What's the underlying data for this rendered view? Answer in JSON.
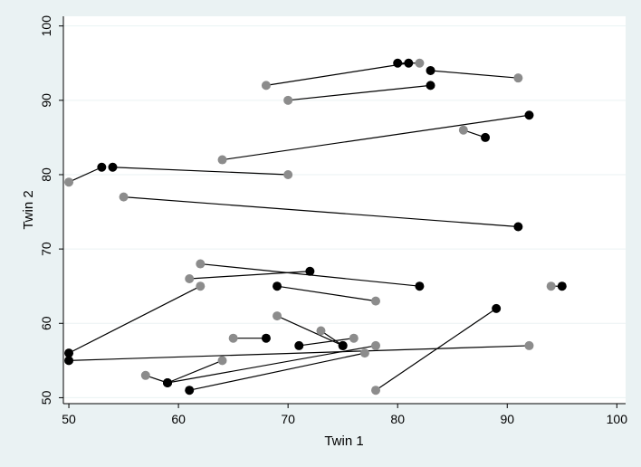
{
  "chart_data": {
    "type": "scatter",
    "title": "",
    "xlabel": "Twin 1",
    "ylabel": "Twin 2",
    "xlim": [
      49.5,
      100.8
    ],
    "ylim": [
      49.2,
      101.3
    ],
    "x_ticks": [
      50,
      60,
      70,
      80,
      90,
      100
    ],
    "y_ticks": [
      50,
      60,
      70,
      80,
      90,
      100
    ],
    "x_tick_labels": [
      "50",
      "60",
      "70",
      "80",
      "90",
      "100"
    ],
    "y_tick_labels": [
      "50",
      "60",
      "70",
      "80",
      "90",
      "100"
    ],
    "grid": "horizontal",
    "colors": {
      "black_points": "#000000",
      "gray_points": "#8c8c8c",
      "lines": "#000000",
      "plot_bg": "#ffffff",
      "outer_bg": "#eaf2f3",
      "grid": "#eaf2f3"
    },
    "pairs": [
      {
        "black": [
          80,
          95
        ],
        "gray": [
          82,
          95
        ]
      },
      {
        "black": [
          81,
          95
        ],
        "gray": [
          68,
          92
        ]
      },
      {
        "black": [
          83,
          94
        ],
        "gray": [
          91,
          93
        ]
      },
      {
        "black": [
          83,
          92
        ],
        "gray": [
          70,
          90
        ]
      },
      {
        "black": [
          92,
          88
        ],
        "gray": [
          64,
          82
        ]
      },
      {
        "black": [
          88,
          85
        ],
        "gray": [
          86,
          86
        ]
      },
      {
        "black": [
          53,
          81
        ],
        "gray": [
          50,
          79
        ]
      },
      {
        "black": [
          54,
          81
        ],
        "gray": [
          70,
          80
        ]
      },
      {
        "black": [
          91,
          73
        ],
        "gray": [
          55,
          77
        ]
      },
      {
        "black": [
          72,
          67
        ],
        "gray": [
          61,
          66
        ]
      },
      {
        "black": [
          82,
          65
        ],
        "gray": [
          62,
          68
        ]
      },
      {
        "black": [
          95,
          65
        ],
        "gray": [
          94,
          65
        ]
      },
      {
        "black": [
          50,
          56
        ],
        "gray": [
          62,
          65
        ]
      },
      {
        "black": [
          69,
          65
        ],
        "gray": [
          78,
          63
        ]
      },
      {
        "black": [
          89,
          62
        ],
        "gray": [
          78,
          51
        ]
      },
      {
        "black": [
          68,
          58
        ],
        "gray": [
          65,
          58
        ]
      },
      {
        "black": [
          71,
          57
        ],
        "gray": [
          76,
          58
        ]
      },
      {
        "black": [
          75,
          57
        ],
        "gray": [
          69,
          61
        ]
      },
      {
        "black": [
          75,
          57
        ],
        "gray": [
          73,
          59
        ]
      },
      {
        "black": [
          50,
          55
        ],
        "gray": [
          92,
          57
        ]
      },
      {
        "black": [
          59,
          52
        ],
        "gray": [
          78,
          57
        ]
      },
      {
        "black": [
          59,
          52
        ],
        "gray": [
          57,
          53
        ]
      },
      {
        "black": [
          59,
          52
        ],
        "gray": [
          64,
          55
        ]
      },
      {
        "black": [
          61,
          51
        ],
        "gray": [
          77,
          56
        ]
      }
    ]
  }
}
